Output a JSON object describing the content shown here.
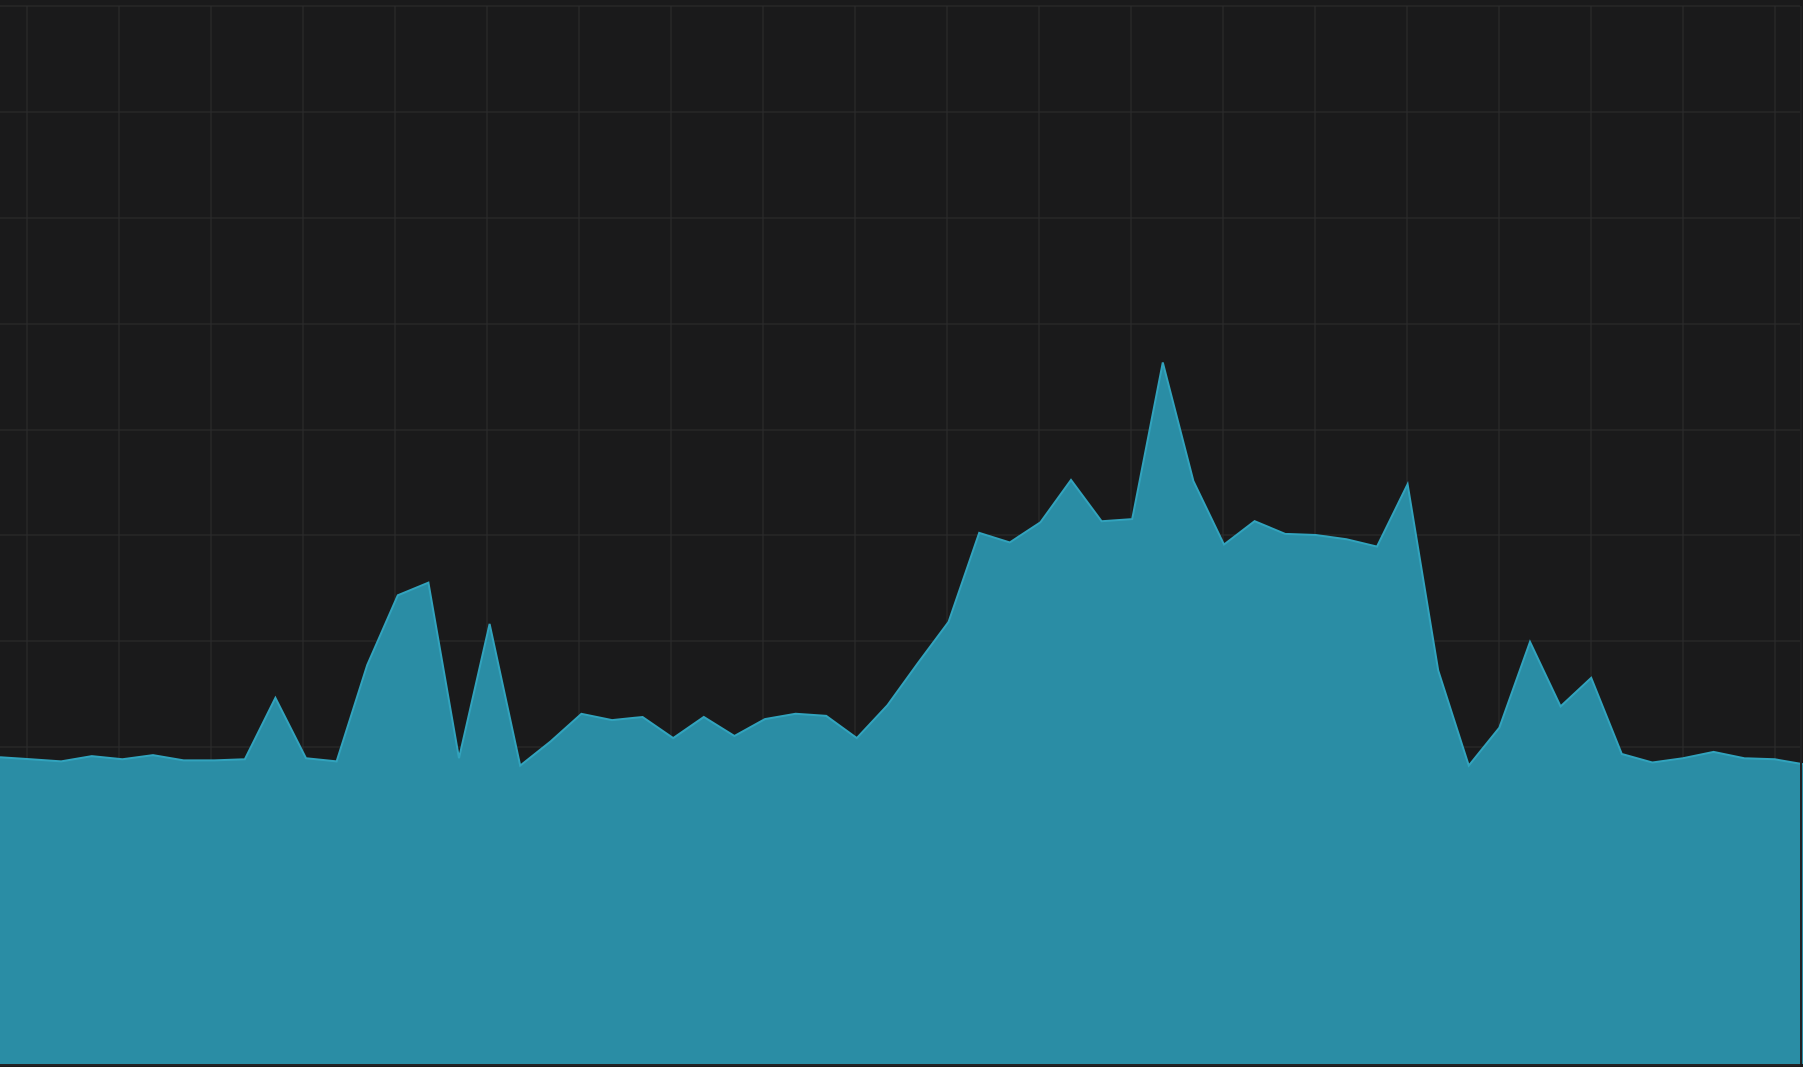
{
  "chart_data": {
    "type": "area",
    "title": "",
    "xlabel": "",
    "ylabel": "",
    "grid": true,
    "legend": "none",
    "ylim": [
      0,
      100
    ],
    "colors": {
      "background": "#1a1a1b",
      "grid": "#2d2d2e",
      "fill": "#2a8da5",
      "line": "#31a3bd",
      "border": "#222224"
    },
    "series": [
      {
        "values": [
          29,
          28.8,
          28.6,
          29.1,
          28.8,
          29.2,
          28.7,
          28.7,
          28.8,
          34.6,
          28.9,
          28.6,
          37.7,
          44.3,
          45.5,
          28.9,
          41.6,
          28.2,
          30.5,
          33.1,
          32.5,
          32.8,
          30.8,
          32.8,
          31,
          32.6,
          33.1,
          32.9,
          30.8,
          33.9,
          37.9,
          41.8,
          50.2,
          49.3,
          51.2,
          55.2,
          51.3,
          51.5,
          66.3,
          55.1,
          49.1,
          51.3,
          50.1,
          50,
          49.6,
          48.9,
          54.8,
          37.2,
          28.2,
          31.8,
          39.9,
          33.8,
          36.5,
          29.3,
          28.5,
          28.9,
          29.5,
          28.9,
          28.8,
          28.3
        ]
      }
    ]
  }
}
